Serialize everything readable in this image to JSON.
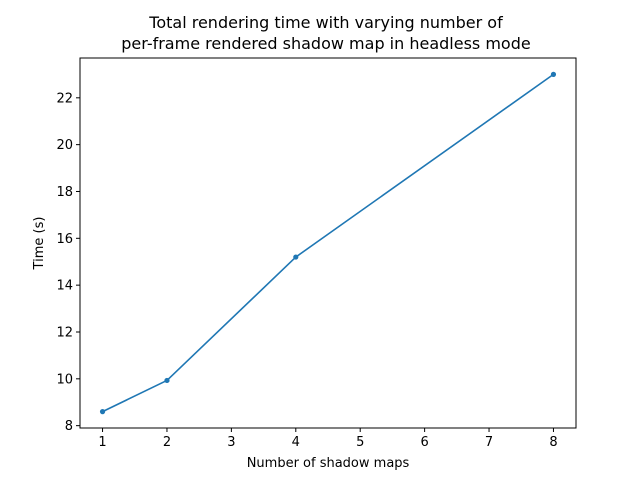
{
  "chart_data": {
    "type": "line",
    "title_lines": [
      "Total rendering time with varying number of",
      "per-frame rendered shadow map in headless mode"
    ],
    "xlabel": "Number of shadow maps",
    "ylabel": "Time (s)",
    "x": [
      1,
      2,
      4,
      8
    ],
    "series": [
      {
        "values": [
          8.6,
          9.93,
          15.2,
          23.0
        ],
        "color": "#1f77b4"
      }
    ],
    "xlim": [
      0.65,
      8.35
    ],
    "ylim": [
      7.9,
      23.7
    ],
    "xticks": [
      1,
      2,
      3,
      4,
      5,
      6,
      7,
      8
    ],
    "yticks": [
      8,
      10,
      12,
      14,
      16,
      18,
      20,
      22
    ],
    "grid": false,
    "legend": "none"
  }
}
